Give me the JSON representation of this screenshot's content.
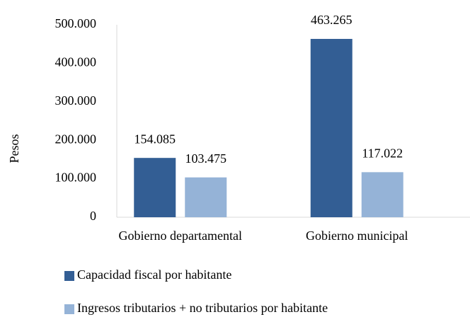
{
  "chart_data": {
    "type": "bar",
    "y_label": "Pesos",
    "categories": [
      "Gobierno departamental",
      "Gobierno municipal"
    ],
    "series": [
      {
        "name": "Capacidad fiscal por habitante",
        "color": "#335e94",
        "values": [
          154085,
          463265
        ],
        "value_labels": [
          "154.085",
          "463.265"
        ]
      },
      {
        "name": "Ingresos tributarios + no tributarios por habitante",
        "color": "#95b3d7",
        "values": [
          103475,
          117022
        ],
        "value_labels": [
          "103.475",
          "117.022"
        ]
      }
    ],
    "ylim": [
      0,
      500000
    ],
    "yticks": [
      0,
      {
        "value": 100000,
        "label": "100.000"
      },
      {
        "value": 200000,
        "label": "200.000"
      },
      {
        "value": 300000,
        "label": "300.000"
      },
      {
        "value": 400000,
        "label": "400.000"
      },
      {
        "value": 500000,
        "label": "500.000"
      }
    ],
    "grid": false,
    "legend": "bottom"
  }
}
